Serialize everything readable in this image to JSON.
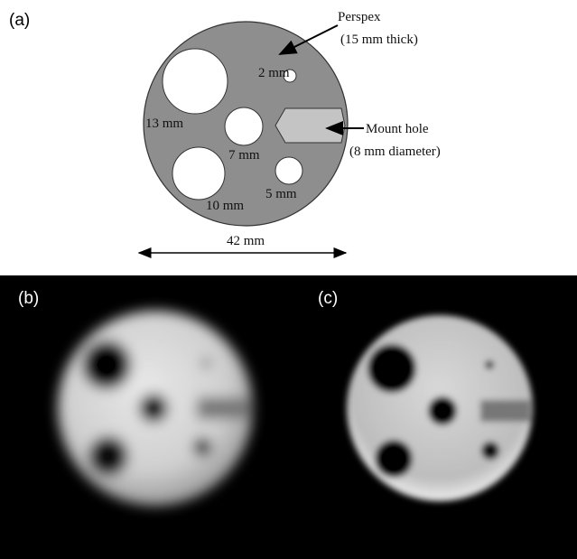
{
  "panel_a": {
    "label": "(a)",
    "annotations": {
      "perspex": "Perspex",
      "perspex_thickness": "(15 mm thick)",
      "mount_hole": "Mount hole",
      "mount_hole_diameter": "(8 mm diameter)"
    },
    "holes": [
      "2 mm",
      "13 mm",
      "7 mm",
      "5 mm",
      "10 mm"
    ],
    "width_label": "42 mm"
  },
  "panel_b": {
    "label": "(b)"
  },
  "panel_c": {
    "label": "(c)"
  }
}
